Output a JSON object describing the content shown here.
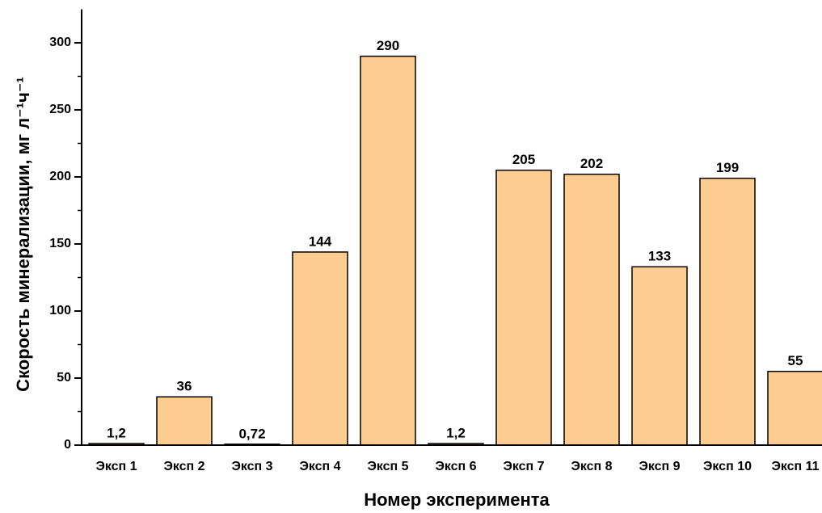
{
  "chart_data": {
    "type": "bar",
    "xlabel": "Номер эксперимента",
    "ylabel": "Скорость минерализации, мг л⁻¹ч⁻¹",
    "categories": [
      "Эксп 1",
      "Эксп 2",
      "Эксп 3",
      "Эксп 4",
      "Эксп 5",
      "Эксп 6",
      "Эксп 7",
      "Эксп 8",
      "Эксп 9",
      "Эксп 10",
      "Эксп 11"
    ],
    "values": [
      1.2,
      36,
      0.72,
      144,
      290,
      1.2,
      205,
      202,
      133,
      199,
      55
    ],
    "value_labels": [
      "1,2",
      "36",
      "0,72",
      "144",
      "290",
      "1,2",
      "205",
      "202",
      "133",
      "199",
      "55"
    ],
    "color": "#fecc91",
    "ylim": [
      0,
      325
    ],
    "yticks": [
      0,
      50,
      100,
      150,
      200,
      250,
      300
    ]
  }
}
